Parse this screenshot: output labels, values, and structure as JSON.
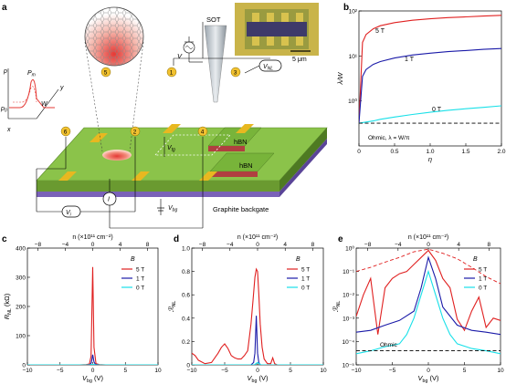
{
  "panels": {
    "a": {
      "label": "a",
      "sot": "SOT",
      "scalebar": "5 μm",
      "hbn_top": "hBN",
      "hbn_bottom": "hBN",
      "backgate": "Graphite backgate",
      "contacts": [
        "5",
        "1",
        "3",
        "6",
        "2",
        "4"
      ],
      "v_i": "V",
      "v_i_sub": "i",
      "v_nl": "V",
      "v_nl_sub": "NL",
      "v_tg": "V",
      "v_tg_sub": "tg",
      "v_bg": "V",
      "v_bg_sub": "bg",
      "v_p": "V",
      "v_p_sub": "p",
      "current": "I",
      "axes": [
        "x",
        "y"
      ],
      "p_axis": "p",
      "p0": "p",
      "p0_sub": "0",
      "pmax": "P",
      "pmax_sub": "m",
      "width": "W",
      "colors": {
        "gr": "#8bc34a",
        "hbn": "#5a9a2e",
        "gold": "#e8b820",
        "hot": "#e53935"
      }
    },
    "b": {
      "label": "b",
      "ylabel": "λ/W",
      "xlabel": "η",
      "ohmic": "Ohmic, λ = W/π",
      "series_labels": [
        "5 T",
        "1 T",
        "0 T"
      ],
      "xticks": [
        "0",
        "0.5",
        "1.0",
        "1.5",
        "2.0"
      ],
      "yticks": [
        "10⁰",
        "10¹",
        "10²"
      ]
    },
    "c": {
      "label": "c",
      "ylabel": "R",
      "ylabel_sub": "NL",
      "ylabel_unit": " (kΩ)",
      "xlabel": "V",
      "xlabel_sub": "bg",
      "xlabel_unit": " (V)",
      "toplabel": "n (×10¹¹ cm⁻²)",
      "legend_title": "B",
      "legend": [
        "5 T",
        "1 T",
        "0 T"
      ],
      "xticks": [
        "−10",
        "−5",
        "0",
        "5",
        "10"
      ],
      "topticks": [
        "−8",
        "−4",
        "0",
        "4",
        "8"
      ],
      "yticks": [
        "0",
        "100",
        "200",
        "300",
        "400"
      ]
    },
    "d": {
      "label": "d",
      "ylabel": "ℛ",
      "ylabel_sub": "NL",
      "xlabel": "V",
      "xlabel_sub": "bg",
      "xlabel_unit": " (V)",
      "toplabel": "n (×10¹¹ cm⁻²)",
      "legend_title": "B",
      "legend": [
        "5 T",
        "1 T",
        "0 T"
      ],
      "xticks": [
        "−10",
        "−5",
        "0",
        "5",
        "10"
      ],
      "topticks": [
        "−8",
        "−4",
        "0",
        "4",
        "8"
      ],
      "yticks": [
        "0",
        "0.2",
        "0.4",
        "0.6",
        "0.8",
        "1.0"
      ]
    },
    "e": {
      "label": "e",
      "ylabel": "ℛ",
      "ylabel_sub": "NL",
      "xlabel": "V",
      "xlabel_sub": "bg",
      "xlabel_unit": " (V)",
      "toplabel": "n (×10¹¹ cm⁻²)",
      "legend_title": "B",
      "legend": [
        "5 T",
        "1 T",
        "0 T"
      ],
      "ohmic": "Ohmic",
      "xticks": [
        "−10",
        "−5",
        "0",
        "5",
        "10"
      ],
      "topticks": [
        "−8",
        "−4",
        "0",
        "4",
        "8"
      ],
      "yticks": [
        "10⁻⁵",
        "10⁻⁴",
        "10⁻³",
        "10⁻²",
        "10⁻¹",
        "10⁰"
      ]
    }
  },
  "chart_data": [
    {
      "type": "line",
      "panel": "b",
      "xlabel": "η",
      "ylabel": "λ/W",
      "xlim": [
        0,
        2.0
      ],
      "ylim": [
        0.1,
        100
      ],
      "yscale": "log",
      "x": [
        0,
        0.05,
        0.1,
        0.2,
        0.3,
        0.5,
        0.75,
        1.0,
        1.25,
        1.5,
        1.75,
        2.0
      ],
      "series": [
        {
          "name": "5 T",
          "color": "#e02020",
          "values": [
            0.32,
            20,
            30,
            40,
            47,
            55,
            62,
            67,
            71,
            74,
            77,
            80
          ]
        },
        {
          "name": "1 T",
          "color": "#1a1aa8",
          "values": [
            0.32,
            3.5,
            5,
            6.5,
            7.5,
            9,
            10.5,
            11.5,
            12.5,
            13.2,
            14,
            14.6
          ]
        },
        {
          "name": "0 T",
          "color": "#18e0e8",
          "values": [
            0.32,
            0.33,
            0.34,
            0.36,
            0.39,
            0.44,
            0.5,
            0.56,
            0.62,
            0.67,
            0.72,
            0.78
          ]
        },
        {
          "name": "Ohmic, λ = W/π",
          "color": "#000000",
          "dashed": true,
          "values": [
            0.32,
            0.32,
            0.32,
            0.32,
            0.32,
            0.32,
            0.32,
            0.32,
            0.32,
            0.32,
            0.32,
            0.32
          ]
        }
      ]
    },
    {
      "type": "line",
      "panel": "c",
      "xlabel": "V_bg (V)",
      "ylabel": "R_NL (kΩ)",
      "xlim": [
        -10,
        10
      ],
      "ylim": [
        0,
        400
      ],
      "series": [
        {
          "name": "5 T",
          "color": "#e02020",
          "x": [
            -10,
            -2,
            -1,
            -0.5,
            -0.25,
            0,
            0.2,
            0.5,
            1,
            2,
            10
          ],
          "values": [
            0,
            0,
            1,
            3,
            30,
            335,
            60,
            4,
            1,
            0,
            0
          ]
        },
        {
          "name": "1 T",
          "color": "#1a1aa8",
          "x": [
            -10,
            -1,
            -0.4,
            -0.2,
            0,
            0.2,
            0.4,
            1,
            10
          ],
          "values": [
            0,
            0,
            1,
            8,
            35,
            10,
            2,
            0,
            0
          ]
        },
        {
          "name": "0 T",
          "color": "#18e0e8",
          "x": [
            -10,
            -0.5,
            0,
            0.5,
            10
          ],
          "values": [
            0,
            0,
            2,
            0,
            0
          ]
        }
      ]
    },
    {
      "type": "line",
      "panel": "d",
      "xlabel": "V_bg (V)",
      "ylabel": "ℛ_NL",
      "xlim": [
        -10,
        10
      ],
      "ylim": [
        0,
        1.0
      ],
      "series": [
        {
          "name": "5 T",
          "color": "#e02020",
          "x": [
            -10,
            -9.5,
            -9,
            -8,
            -7,
            -6,
            -5.5,
            -5,
            -4.5,
            -4,
            -3.5,
            -3,
            -2.5,
            -2,
            -1.5,
            -1,
            -0.7,
            -0.4,
            -0.2,
            0,
            0.2,
            0.4,
            0.7,
            1,
            1.5,
            2,
            2.3,
            2.6,
            3,
            4,
            5,
            10
          ],
          "values": [
            0.1,
            0.08,
            0.04,
            0.01,
            0.02,
            0.1,
            0.15,
            0.18,
            0.14,
            0.08,
            0.06,
            0.05,
            0.05,
            0.08,
            0.12,
            0.35,
            0.55,
            0.75,
            0.82,
            0.8,
            0.6,
            0.35,
            0.15,
            0.05,
            0.01,
            0.01,
            0.06,
            0.01,
            0,
            0,
            0,
            0
          ]
        },
        {
          "name": "1 T",
          "color": "#1a1aa8",
          "x": [
            -10,
            -1,
            -0.6,
            -0.4,
            -0.2,
            0,
            0.2,
            0.4,
            1,
            10
          ],
          "values": [
            0,
            0,
            0.02,
            0.1,
            0.42,
            0.1,
            0.02,
            0,
            0,
            0
          ]
        },
        {
          "name": "0 T",
          "color": "#18e0e8",
          "x": [
            -10,
            -0.5,
            0,
            0.5,
            10
          ],
          "values": [
            0,
            0,
            0.02,
            0,
            0
          ]
        }
      ]
    },
    {
      "type": "line",
      "panel": "e",
      "xlabel": "V_bg (V)",
      "ylabel": "ℛ_NL",
      "xlim": [
        -10,
        10
      ],
      "ylim": [
        1e-05,
        1.0
      ],
      "yscale": "log",
      "series": [
        {
          "name": "5 T",
          "color": "#e02020",
          "x": [
            -10,
            -9,
            -8,
            -7,
            -6,
            -5,
            -4,
            -3,
            -2,
            -1,
            0,
            1,
            2,
            3,
            4,
            5,
            6,
            7,
            8,
            9,
            10
          ],
          "values": [
            0.0012,
            0.01,
            0.05,
            0.0002,
            0.02,
            0.05,
            0.08,
            0.1,
            0.2,
            0.4,
            0.8,
            0.3,
            0.05,
            0.02,
            0.0009,
            0.0003,
            0.002,
            0.008,
            0.0004,
            0.001,
            0.0008
          ]
        },
        {
          "name": "1 T",
          "color": "#1a1aa8",
          "x": [
            -10,
            -8,
            -6,
            -4,
            -2,
            -1,
            0,
            1,
            2,
            4,
            6,
            8,
            10
          ],
          "values": [
            0.00025,
            0.0003,
            0.0005,
            0.0008,
            0.002,
            0.02,
            0.4,
            0.05,
            0.003,
            0.0005,
            0.0003,
            0.00025,
            0.0002
          ]
        },
        {
          "name": "0 T",
          "color": "#18e0e8",
          "x": [
            -10,
            -8,
            -6,
            -4,
            -3,
            -2,
            -1,
            0,
            1,
            2,
            3,
            4,
            6,
            8,
            10
          ],
          "values": [
            3e-05,
            4e-05,
            6e-05,
            8e-05,
            0.0002,
            0.001,
            0.01,
            0.1,
            0.01,
            0.001,
            0.0002,
            8e-05,
            5e-05,
            4e-05,
            3e-05
          ]
        },
        {
          "name": "5 T envelope",
          "color": "#e02020",
          "dashed": true,
          "x": [
            -10,
            -8,
            -6,
            -4,
            -2,
            0,
            2,
            4,
            6,
            8,
            10
          ],
          "values": [
            0.1,
            0.15,
            0.25,
            0.4,
            0.7,
            0.9,
            0.6,
            0.35,
            0.15,
            0.06,
            0.03
          ]
        },
        {
          "name": "Ohmic",
          "color": "#000000",
          "dashed": true,
          "x": [
            -10,
            10
          ],
          "values": [
            4e-05,
            4e-05
          ]
        }
      ]
    }
  ]
}
